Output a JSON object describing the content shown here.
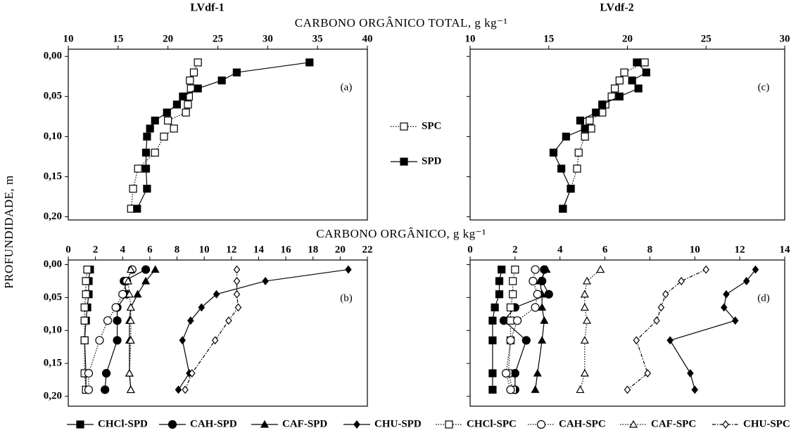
{
  "chart_data": [
    {
      "type": "line",
      "panel_label": "(a)",
      "title": "LVdf-1",
      "xlabel": "CARBONO ORGÂNICO TOTAL, g kg⁻¹",
      "ylabel": "PROFUNDIDADE, m",
      "xlim": [
        10,
        40
      ],
      "xticks": [
        10,
        15,
        20,
        25,
        30,
        35,
        40
      ],
      "ylim": [
        -0.009,
        0.204
      ],
      "yticks": [
        {
          "value": 0,
          "label": "0,00"
        },
        {
          "value": 0.05,
          "label": "0,05"
        },
        {
          "value": 0.1,
          "label": "0,10"
        },
        {
          "value": 0.15,
          "label": "0,15"
        },
        {
          "value": 0.2,
          "label": "0,20"
        }
      ],
      "legend": "right",
      "y": [
        0.0075,
        0.02,
        0.03,
        0.04,
        0.05,
        0.06,
        0.07,
        0.08,
        0.09,
        0.1,
        0.12,
        0.14,
        0.165,
        0.19
      ],
      "series": [
        {
          "name": "SPC",
          "marker": "square",
          "filled": false,
          "dash": "dotted",
          "color": "#000",
          "values": [
            23.0,
            22.6,
            22.2,
            22.3,
            22.1,
            22.0,
            21.8,
            20.0,
            20.6,
            19.6,
            18.7,
            17.0,
            16.5,
            16.3
          ]
        },
        {
          "name": "SPD",
          "marker": "square",
          "filled": true,
          "dash": "solid",
          "color": "#000",
          "values": [
            34.2,
            26.9,
            25.4,
            23.0,
            21.5,
            20.9,
            19.9,
            18.7,
            18.2,
            17.9,
            17.8,
            17.8,
            17.9,
            16.9
          ]
        }
      ]
    },
    {
      "type": "line",
      "panel_label": "(c)",
      "title": "LVdf-2",
      "xlim": [
        10,
        30
      ],
      "xticks": [
        10,
        15,
        20,
        25,
        30
      ],
      "ylim": [
        -0.009,
        0.204
      ],
      "yticks": [
        0,
        0.05,
        0.1,
        0.15,
        0.2
      ],
      "ytick_labels": false,
      "y": [
        0.0075,
        0.02,
        0.03,
        0.04,
        0.05,
        0.06,
        0.07,
        0.08,
        0.09,
        0.1,
        0.12,
        0.14,
        0.165,
        0.19
      ],
      "series": [
        {
          "marker": "square",
          "filled": false,
          "dash": "dotted",
          "color": "#000",
          "values": [
            21.1,
            19.8,
            19.5,
            19.2,
            19.0,
            18.6,
            18.4,
            17.6,
            17.7,
            17.3,
            16.9,
            16.8,
            16.4,
            15.9
          ]
        },
        {
          "marker": "square",
          "filled": true,
          "dash": "solid",
          "color": "#000",
          "values": [
            20.6,
            21.2,
            20.3,
            20.7,
            19.5,
            18.4,
            18.0,
            17.0,
            17.3,
            16.1,
            15.3,
            15.8,
            16.4,
            15.9
          ]
        }
      ]
    },
    {
      "type": "line",
      "panel_label": "(b)",
      "xlabel": "CARBONO ORGÂNICO, g kg⁻¹",
      "xlim": [
        0,
        22
      ],
      "xticks": [
        0,
        2,
        4,
        6,
        8,
        10,
        12,
        14,
        16,
        18,
        20,
        22
      ],
      "ylim": [
        -0.007,
        0.215
      ],
      "yticks": [
        {
          "value": 0,
          "label": "0,00"
        },
        {
          "value": 0.05,
          "label": "0,05"
        },
        {
          "value": 0.1,
          "label": "0,10"
        },
        {
          "value": 0.15,
          "label": "0,15"
        },
        {
          "value": 0.2,
          "label": "0,20"
        }
      ],
      "legend": "bottom",
      "y": [
        0.0075,
        0.025,
        0.045,
        0.065,
        0.085,
        0.115,
        0.165,
        0.19
      ],
      "series": [
        {
          "name": "CHCl-SPD",
          "marker": "square",
          "filled": true,
          "dash": "solid",
          "color": "#000",
          "values": [
            1.6,
            1.5,
            1.5,
            1.4,
            1.3,
            1.2,
            1.3,
            1.3
          ]
        },
        {
          "name": "CAH-SPD",
          "marker": "circle",
          "filled": true,
          "dash": "solid",
          "color": "#000",
          "values": [
            5.7,
            4.1,
            4.3,
            3.6,
            3.6,
            3.6,
            2.8,
            2.7
          ]
        },
        {
          "name": "CAF-SPD",
          "marker": "triangle",
          "filled": true,
          "dash": "solid",
          "color": "#000",
          "values": [
            6.4,
            5.7,
            5.1,
            4.6,
            4.5,
            4.5,
            4.5,
            4.6
          ]
        },
        {
          "name": "CHU-SPD",
          "marker": "diamond",
          "filled": true,
          "dash": "solid",
          "color": "#000",
          "values": [
            20.6,
            14.5,
            10.9,
            9.8,
            9.0,
            8.4,
            8.9,
            8.1
          ]
        },
        {
          "name": "CHCl-SPC",
          "marker": "square",
          "filled": false,
          "dash": "dotted",
          "color": "#000",
          "values": [
            1.4,
            1.3,
            1.3,
            1.2,
            1.2,
            1.2,
            1.2,
            1.3
          ]
        },
        {
          "name": "CAH-SPC",
          "marker": "circle",
          "filled": false,
          "dash": "dotted",
          "color": "#000",
          "values": [
            4.7,
            4.3,
            4.0,
            3.5,
            2.9,
            2.3,
            1.5,
            1.5
          ]
        },
        {
          "name": "CAF-SPC",
          "marker": "triangle",
          "filled": false,
          "dash": "dotted",
          "color": "#000",
          "values": [
            4.6,
            4.4,
            4.5,
            4.6,
            4.6,
            4.6,
            4.5,
            4.6
          ]
        },
        {
          "name": "CHU-SPC",
          "marker": "diamond",
          "filled": false,
          "dash": "dashdot",
          "color": "#000",
          "values": [
            12.4,
            12.4,
            12.4,
            12.5,
            11.8,
            10.8,
            9.1,
            8.6
          ]
        }
      ]
    },
    {
      "type": "line",
      "panel_label": "(d)",
      "xlim": [
        0,
        14
      ],
      "xticks": [
        0,
        2,
        4,
        6,
        8,
        10,
        12,
        14
      ],
      "ylim": [
        -0.007,
        0.215
      ],
      "yticks": [
        0,
        0.05,
        0.1,
        0.15,
        0.2
      ],
      "ytick_labels": false,
      "y": [
        0.0075,
        0.025,
        0.045,
        0.065,
        0.085,
        0.115,
        0.165,
        0.19
      ],
      "series": [
        {
          "marker": "square",
          "filled": true,
          "dash": "solid",
          "color": "#000",
          "values": [
            1.4,
            1.3,
            1.3,
            1.1,
            1.0,
            1.0,
            1.0,
            1.0
          ]
        },
        {
          "marker": "circle",
          "filled": true,
          "dash": "solid",
          "color": "#000",
          "values": [
            3.3,
            3.2,
            3.5,
            2.0,
            1.5,
            2.5,
            2.0,
            2.0
          ]
        },
        {
          "marker": "triangle",
          "filled": true,
          "dash": "solid",
          "color": "#000",
          "values": [
            3.4,
            3.1,
            3.2,
            3.2,
            3.3,
            3.2,
            3.0,
            2.9
          ]
        },
        {
          "marker": "diamond",
          "filled": true,
          "dash": "solid",
          "color": "#000",
          "values": [
            12.7,
            12.3,
            11.4,
            11.3,
            11.8,
            8.9,
            9.8,
            10.0
          ]
        },
        {
          "marker": "square",
          "filled": false,
          "dash": "dotted",
          "color": "#000",
          "values": [
            2.0,
            1.9,
            1.9,
            1.8,
            1.8,
            1.8,
            1.7,
            1.9
          ]
        },
        {
          "marker": "circle",
          "filled": false,
          "dash": "dotted",
          "color": "#000",
          "values": [
            2.9,
            2.8,
            3.0,
            2.9,
            2.1,
            1.8,
            1.6,
            1.8
          ]
        },
        {
          "marker": "triangle",
          "filled": false,
          "dash": "dotted",
          "color": "#000",
          "values": [
            5.8,
            5.2,
            5.1,
            5.1,
            5.2,
            5.1,
            5.1,
            4.9
          ]
        },
        {
          "marker": "diamond",
          "filled": false,
          "dash": "dashdot",
          "color": "#000",
          "values": [
            10.5,
            9.4,
            8.7,
            8.5,
            8.3,
            7.4,
            7.9,
            7.0
          ]
        }
      ]
    }
  ]
}
